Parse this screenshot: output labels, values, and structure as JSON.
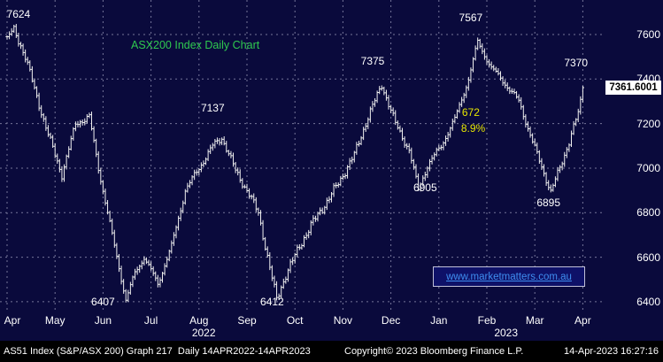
{
  "colors": {
    "background": "#0a0a3c",
    "grid": "#9a9ab8",
    "bars": "#f0f0f0",
    "title_green": "#2fc94f",
    "annotation_white": "#ffffff",
    "annotation_yellow": "#e6e600",
    "watermark_blue": "#3f8ef0",
    "badge_bg": "#ffffff",
    "badge_text": "#000000",
    "status_bg": "#000000"
  },
  "title": {
    "text": "ASX200 Index Daily Chart"
  },
  "watermark": {
    "text": "www.marketmatters.com.au"
  },
  "price_badge": "7361.6001",
  "y_axis": {
    "ticks": [
      7600,
      7400,
      7200,
      7000,
      6800,
      6600,
      6400
    ]
  },
  "x_axis": {
    "months": [
      "Apr",
      "May",
      "Jun",
      "Jul",
      "Aug",
      "Sep",
      "Oct",
      "Nov",
      "Dec",
      "Jan",
      "Feb",
      "Mar",
      "Apr"
    ],
    "years": [
      {
        "label": "2022",
        "center_month": 4.1
      },
      {
        "label": "2023",
        "center_month": 10.4
      }
    ]
  },
  "status_bar": {
    "left": "AS51 Index (S&P/ASX 200) Graph 217  Daily 14APR2022-14APR2023",
    "center": "Copyright© 2023 Bloomberg Finance L.P.",
    "right": "14-Apr-2023 16:27:16"
  },
  "chart_data": {
    "type": "ohlc-bar",
    "title": "ASX200 Index Daily Chart",
    "instrument": "AS51 Index (S&P/ASX 200)",
    "period": "Daily 14APR2022-14APR2023",
    "last_price": 7361.6001,
    "ylim": [
      6356,
      7755
    ],
    "y_ticks": [
      7600,
      7400,
      7200,
      7000,
      6800,
      6600,
      6400
    ],
    "x_months": [
      "Apr",
      "May",
      "Jun",
      "Jul",
      "Aug",
      "Sep",
      "Oct",
      "Nov",
      "Dec",
      "Jan",
      "Feb",
      "Mar",
      "Apr"
    ],
    "days_total": 252,
    "anchors": [
      [
        0,
        7590
      ],
      [
        3,
        7624
      ],
      [
        8,
        7500
      ],
      [
        13,
        7320
      ],
      [
        18,
        7150
      ],
      [
        24,
        6970
      ],
      [
        30,
        7200
      ],
      [
        36,
        7230
      ],
      [
        40,
        7000
      ],
      [
        46,
        6700
      ],
      [
        52,
        6407
      ],
      [
        56,
        6530
      ],
      [
        60,
        6600
      ],
      [
        66,
        6480
      ],
      [
        72,
        6650
      ],
      [
        78,
        6900
      ],
      [
        84,
        7000
      ],
      [
        90,
        7100
      ],
      [
        94,
        7137
      ],
      [
        100,
        6990
      ],
      [
        106,
        6880
      ],
      [
        110,
        6800
      ],
      [
        114,
        6600
      ],
      [
        118,
        6412
      ],
      [
        122,
        6520
      ],
      [
        128,
        6650
      ],
      [
        134,
        6760
      ],
      [
        140,
        6850
      ],
      [
        146,
        6950
      ],
      [
        152,
        7060
      ],
      [
        158,
        7230
      ],
      [
        164,
        7375
      ],
      [
        170,
        7200
      ],
      [
        176,
        7080
      ],
      [
        180,
        6905
      ],
      [
        184,
        7010
      ],
      [
        190,
        7100
      ],
      [
        196,
        7220
      ],
      [
        202,
        7400
      ],
      [
        206,
        7567
      ],
      [
        212,
        7450
      ],
      [
        218,
        7380
      ],
      [
        224,
        7300
      ],
      [
        228,
        7180
      ],
      [
        232,
        7060
      ],
      [
        238,
        6895
      ],
      [
        242,
        7000
      ],
      [
        246,
        7120
      ],
      [
        250,
        7250
      ],
      [
        252,
        7361.6
      ]
    ],
    "key_levels": {
      "apr22_high": 7624,
      "aug_high": 7137,
      "nov_high": 7375,
      "feb_high": 7567,
      "apr23_high": 7370,
      "jun_low": 6407,
      "sep_low": 6412,
      "dec_low": 6905,
      "mar_low": 6895
    },
    "drawdown_annotation": {
      "points": 672,
      "percent": "8.9%"
    },
    "annotations": [
      {
        "text": "7624",
        "day": 5,
        "y_price": 7660,
        "placement": "above",
        "color": "#ffffff"
      },
      {
        "text": "7137",
        "day": 90,
        "y_price": 7240,
        "placement": "above",
        "color": "#ffffff"
      },
      {
        "text": "7375",
        "day": 160,
        "y_price": 7450,
        "placement": "above",
        "color": "#ffffff"
      },
      {
        "text": "7567",
        "day": 203,
        "y_price": 7645,
        "placement": "above",
        "color": "#ffffff"
      },
      {
        "text": "7370",
        "day": 249,
        "y_price": 7440,
        "placement": "above",
        "color": "#ffffff"
      },
      {
        "text": "6905",
        "day": 183,
        "y_price": 6950,
        "placement": "below",
        "color": "#ffffff"
      },
      {
        "text": "6895",
        "day": 237,
        "y_price": 6880,
        "placement": "below",
        "color": "#ffffff"
      },
      {
        "text": "6407",
        "day": 42,
        "y_price": 6437,
        "placement": "below",
        "color": "#ffffff"
      },
      {
        "text": "6412",
        "day": 116,
        "y_price": 6437,
        "placement": "below",
        "color": "#ffffff"
      },
      {
        "text": "672",
        "day": 203,
        "y_price": 7285,
        "placement": "below",
        "color": "#e6e600"
      },
      {
        "text": "8.9%",
        "day": 204,
        "y_price": 7215,
        "placement": "below",
        "color": "#e6e600"
      }
    ]
  }
}
